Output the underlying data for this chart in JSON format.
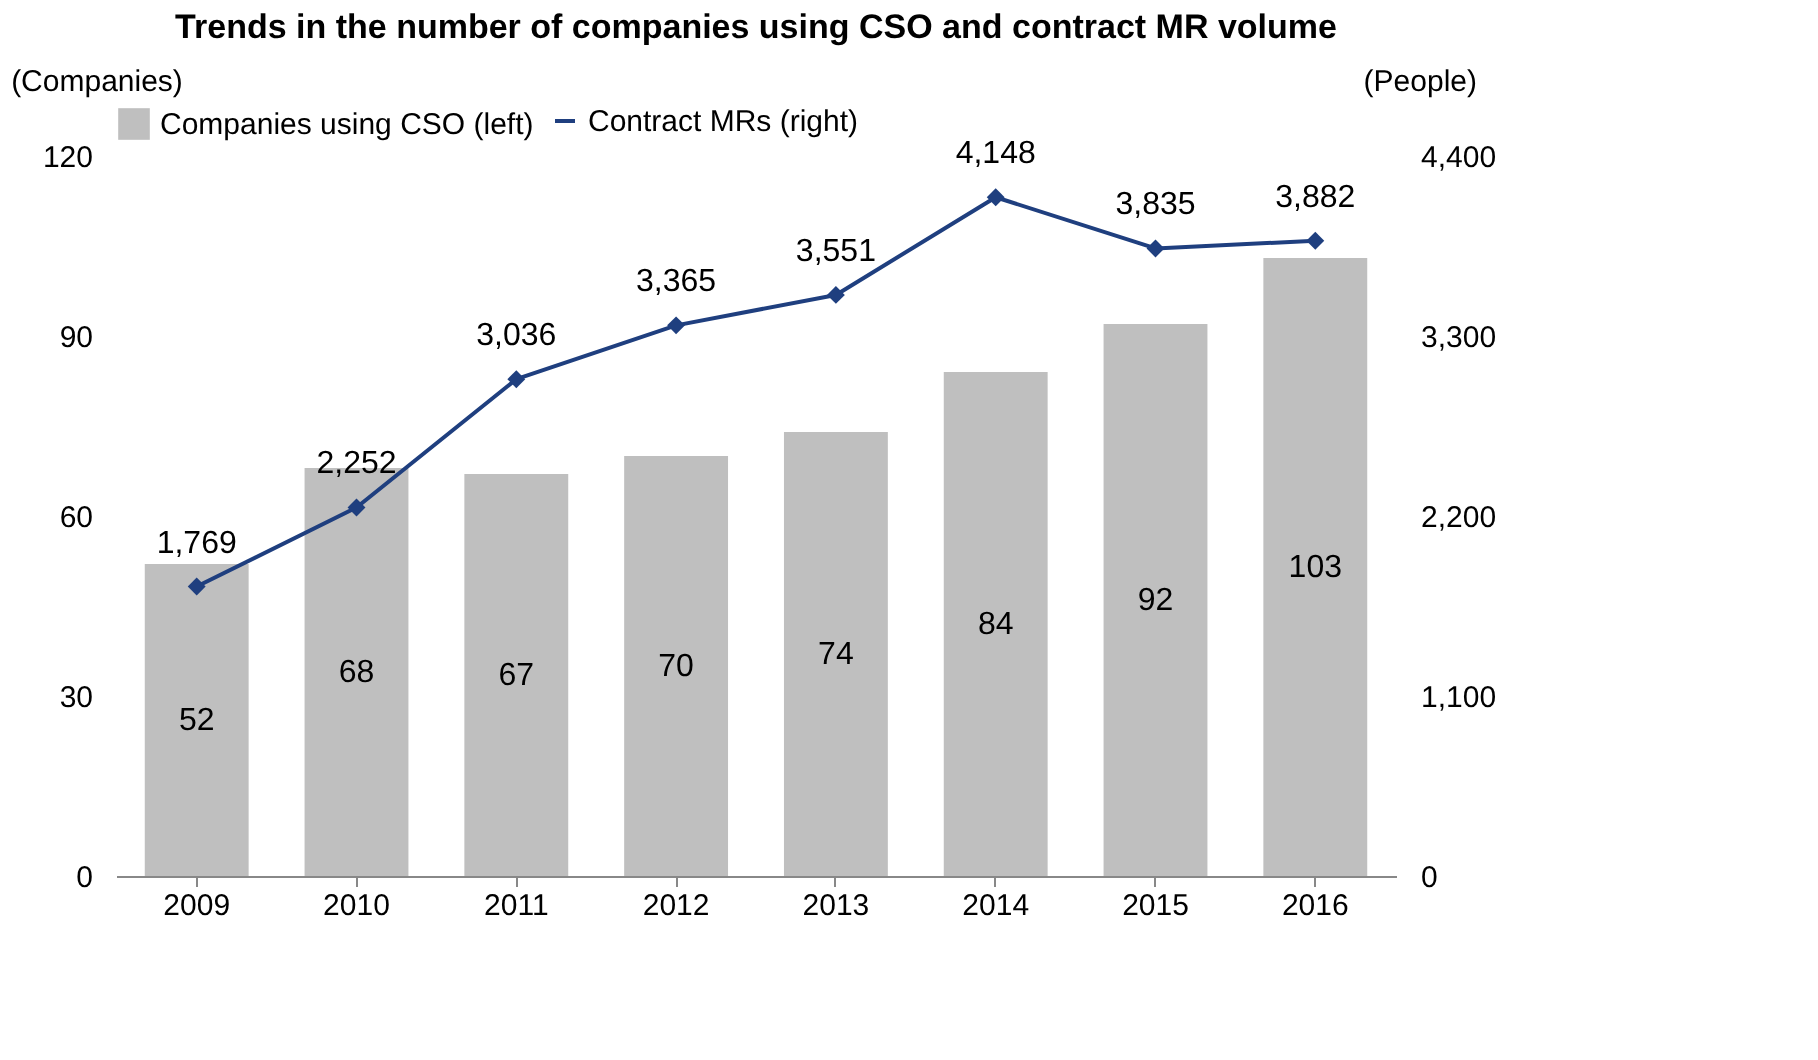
{
  "chart_data": {
    "type": "bar",
    "title": "Trends in the number of companies using CSO and contract MR volume",
    "categories": [
      "2009",
      "2010",
      "2011",
      "2012",
      "2013",
      "2014",
      "2015",
      "2016"
    ],
    "series": [
      {
        "name": "Companies using CSO (left)",
        "color": "#bfbfbf",
        "values": [
          52,
          68,
          67,
          70,
          74,
          84,
          92,
          103
        ]
      },
      {
        "name": "Contract MRs (right)",
        "type": "line",
        "axis": "y2",
        "color": "#1f3f7f",
        "marker": "diamond",
        "values": [
          1769,
          2252,
          3036,
          3365,
          3551,
          4148,
          3835,
          3882
        ]
      }
    ],
    "ylabel": "(Companies)",
    "y2label": "(People)",
    "ylim": [
      0,
      120
    ],
    "yticks": [
      0,
      30,
      60,
      90,
      120
    ],
    "y2lim": [
      0,
      4400
    ],
    "y2ticks": [
      0,
      {
        "value": 1100,
        "label": "1,100"
      },
      {
        "value": 2200,
        "label": "2,200"
      },
      {
        "value": 3300,
        "label": "3,300"
      },
      {
        "value": 4400,
        "label": "4,400"
      }
    ],
    "value_labels": [
      [
        "52",
        "68",
        "67",
        "70",
        "74",
        "84",
        "92",
        "103"
      ],
      [
        "1,769",
        "2,252",
        "3,036",
        "3,365",
        "3,551",
        "4,148",
        "3,835",
        "3,882"
      ]
    ],
    "legend": "top",
    "grid": false
  }
}
